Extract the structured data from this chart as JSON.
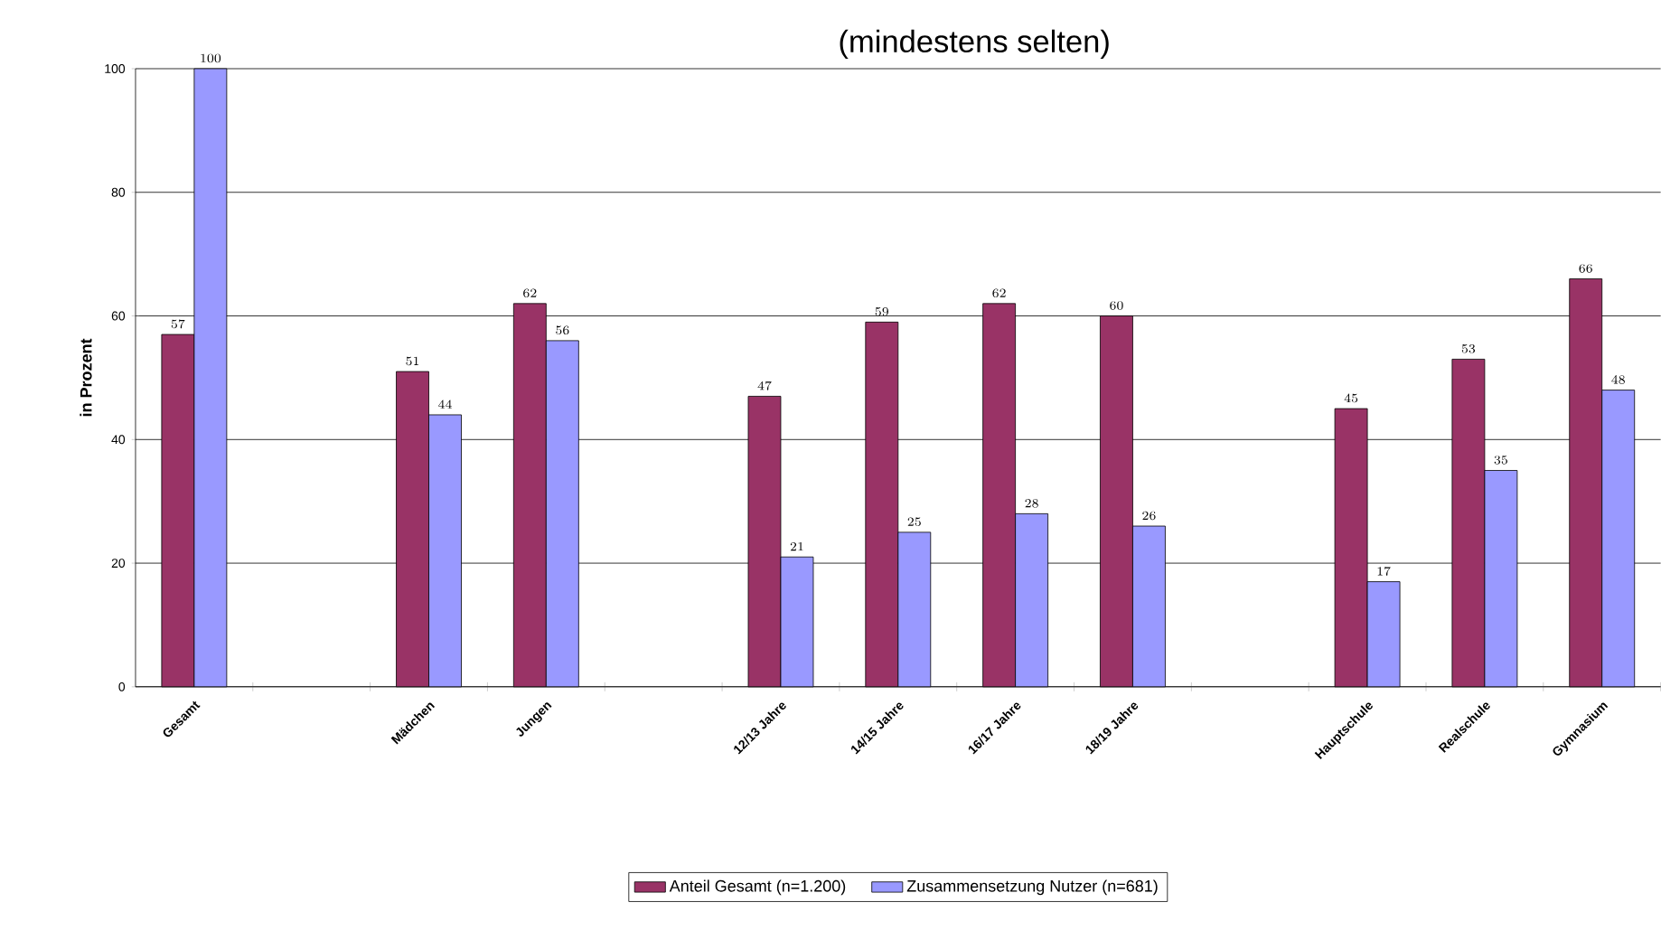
{
  "chart_data": {
    "type": "bar",
    "title": "(mindestens selten)",
    "ylabel": "in Prozent",
    "categories": [
      "Gesamt",
      null,
      "Mädchen",
      "Jungen",
      null,
      "12/13 Jahre",
      "14/15 Jahre",
      "16/17 Jahre",
      "18/19 Jahre",
      null,
      "Hauptschule",
      "Realschule",
      "Gymnasium"
    ],
    "series": [
      {
        "name": "Anteil Gesamt (n=1.200)",
        "color": "#993366",
        "values": [
          57,
          null,
          51,
          62,
          null,
          47,
          59,
          62,
          60,
          null,
          45,
          53,
          66
        ]
      },
      {
        "name": "Zusammensetzung  Nutzer (n=681)",
        "color": "#9999ff",
        "values": [
          100,
          null,
          44,
          56,
          null,
          21,
          25,
          28,
          26,
          null,
          17,
          35,
          48
        ]
      }
    ],
    "ylim": [
      0,
      100
    ],
    "yticks": [
      0,
      20,
      40,
      60,
      80,
      100
    ],
    "grid": "y",
    "legend": "bottom",
    "data_labels": true
  }
}
